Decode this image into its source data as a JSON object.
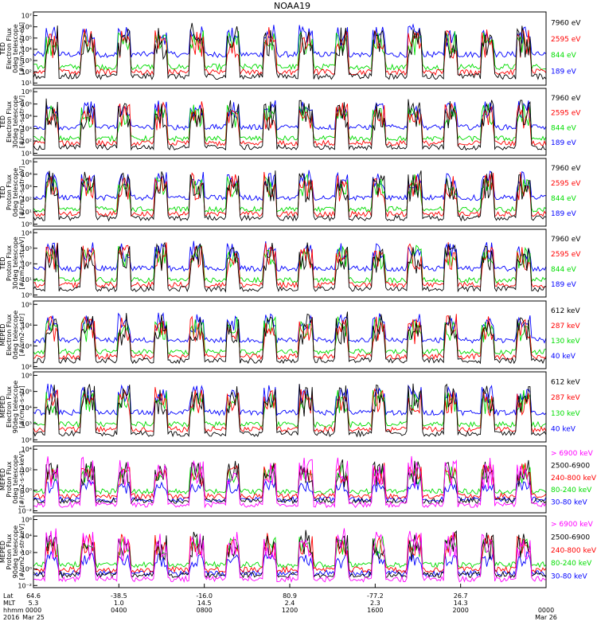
{
  "chart_data": {
    "title": "NOAA19",
    "type": "line",
    "panels": [
      {
        "label_lines": [
          "TED",
          "Electron Flux",
          "0deg telescope",
          "[#/cm2-s-str-eV]"
        ],
        "yticks": [
          "10¹",
          "10²",
          "10³",
          "10⁴",
          "10⁵",
          "10⁶",
          "10⁷"
        ],
        "ylog": [
          1,
          7
        ],
        "series": [
          {
            "name": "7960 eV",
            "color": "#000000"
          },
          {
            "name": "2595 eV",
            "color": "#ff0000"
          },
          {
            "name": "844 eV",
            "color": "#00dd00"
          },
          {
            "name": "189 eV",
            "color": "#0000ff"
          }
        ]
      },
      {
        "label_lines": [
          "TED",
          "Electron Flux",
          "30deg telescope",
          "[#/cm2-s-str-eV]"
        ],
        "yticks": [
          "10¹",
          "10²",
          "10³",
          "10⁴",
          "10⁵",
          "10⁶"
        ],
        "ylog": [
          1,
          6
        ],
        "series": [
          {
            "name": "7960 eV",
            "color": "#000000"
          },
          {
            "name": "2595 eV",
            "color": "#ff0000"
          },
          {
            "name": "844 eV",
            "color": "#00dd00"
          },
          {
            "name": "189 eV",
            "color": "#0000ff"
          }
        ]
      },
      {
        "label_lines": [
          "TED",
          "Proton Flux",
          "0deg telescope",
          "[#/cm2-s-str-eV]"
        ],
        "yticks": [
          "10⁰",
          "10¹",
          "10²",
          "10³",
          "10⁴",
          "10⁵"
        ],
        "ylog": [
          0,
          5
        ],
        "series": [
          {
            "name": "7960 eV",
            "color": "#000000"
          },
          {
            "name": "2595 eV",
            "color": "#ff0000"
          },
          {
            "name": "844 eV",
            "color": "#00dd00"
          },
          {
            "name": "189 eV",
            "color": "#0000ff"
          }
        ]
      },
      {
        "label_lines": [
          "TED",
          "Proton Flux",
          "30deg telescope",
          "[#/cm2-s-str-eV]"
        ],
        "yticks": [
          "10⁰",
          "10¹",
          "10²",
          "10³",
          "10⁴"
        ],
        "ylog": [
          0,
          4.5
        ],
        "series": [
          {
            "name": "7960 eV",
            "color": "#000000"
          },
          {
            "name": "2595 eV",
            "color": "#ff0000"
          },
          {
            "name": "844 eV",
            "color": "#00dd00"
          },
          {
            "name": "189 eV",
            "color": "#0000ff"
          }
        ]
      },
      {
        "label_lines": [
          "MEPED",
          "Electron Flux",
          "0deg telescope",
          "[#/cm2-s-str]"
        ],
        "yticks": [
          "10²",
          "10³",
          "10⁴",
          "10⁵"
        ],
        "ylog": [
          2,
          5.5
        ],
        "series": [
          {
            "name": "612 keV",
            "color": "#000000"
          },
          {
            "name": "287 keV",
            "color": "#ff0000"
          },
          {
            "name": "130 keV",
            "color": "#00dd00"
          },
          {
            "name": "40 keV",
            "color": "#0000ff"
          }
        ]
      },
      {
        "label_lines": [
          "MEPED",
          "Electron Flux",
          "90deg telescope",
          "[#/cm2-s-str]"
        ],
        "yticks": [
          "10²",
          "10³",
          "10⁴",
          "10⁵",
          "10⁶"
        ],
        "ylog": [
          1.5,
          6.5
        ],
        "series": [
          {
            "name": "612 keV",
            "color": "#000000"
          },
          {
            "name": "287 keV",
            "color": "#ff0000"
          },
          {
            "name": "130 keV",
            "color": "#00dd00"
          },
          {
            "name": "40 keV",
            "color": "#0000ff"
          }
        ]
      },
      {
        "label_lines": [
          "MEPED",
          "Proton Flux",
          "0deg telescope",
          "[#/cm2-s-str-keV]"
        ],
        "yticks": [
          "10⁻²",
          "10⁰",
          "10²",
          "10⁴"
        ],
        "ylog": [
          -2.5,
          5.5
        ],
        "series": [
          {
            "name": "> 6900 keV",
            "color": "#ff00ff"
          },
          {
            "name": "2500-6900",
            "color": "#000000"
          },
          {
            "name": "240-800 keV",
            "color": "#ff0000"
          },
          {
            "name": "80-240 keV",
            "color": "#00dd00"
          },
          {
            "name": "30-80 keV",
            "color": "#0000ff"
          }
        ]
      },
      {
        "label_lines": [
          "MEPED",
          "Proton Flux",
          "90deg telescope",
          "[#/cm2-s-str-keV]"
        ],
        "yticks": [
          "10⁻²",
          "10⁰",
          "10²",
          "10⁴",
          "10⁶"
        ],
        "ylog": [
          -2.5,
          6.5
        ],
        "series": [
          {
            "name": "> 6900 keV",
            "color": "#ff00ff"
          },
          {
            "name": "2500-6900",
            "color": "#000000"
          },
          {
            "name": "240-800 keV",
            "color": "#ff0000"
          },
          {
            "name": "80-240 keV",
            "color": "#00dd00"
          },
          {
            "name": "30-80 keV",
            "color": "#0000ff"
          }
        ]
      }
    ],
    "x_axis": {
      "row_labels": [
        "Lat",
        "MLT",
        "hhmm",
        "2016"
      ],
      "columns": [
        {
          "values": [
            "64.6",
            "5.3",
            "0000",
            "Mar 25"
          ],
          "x": 0
        },
        {
          "values": [
            "-38.5",
            "1.0",
            "0400",
            ""
          ],
          "x": 4
        },
        {
          "values": [
            "-16.0",
            "14.5",
            "0800",
            ""
          ],
          "x": 8
        },
        {
          "values": [
            "80.9",
            "2.4",
            "1200",
            ""
          ],
          "x": 12
        },
        {
          "values": [
            "-77.2",
            "2.3",
            "1600",
            ""
          ],
          "x": 16
        },
        {
          "values": [
            "26.7",
            "14.3",
            "2000",
            ""
          ],
          "x": 20
        },
        {
          "values": [
            "",
            "",
            "0000",
            "Mar 26"
          ],
          "x": 24
        }
      ],
      "range_hours": [
        0,
        24
      ]
    }
  }
}
